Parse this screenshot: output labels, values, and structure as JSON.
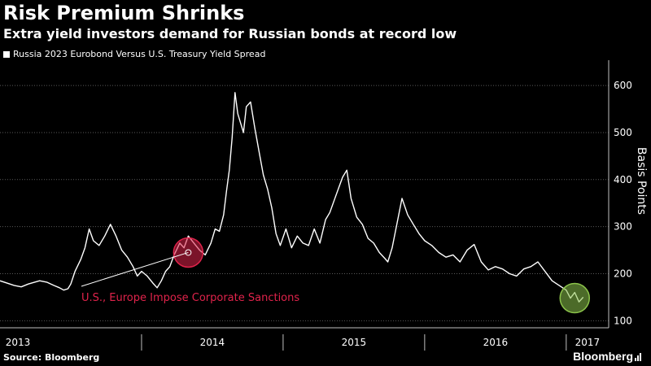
{
  "header": {
    "title": "Risk Premium Shrinks",
    "subtitle": "Extra yield investors demand for Russian bonds at record low"
  },
  "footer": {
    "source": "Source: Bloomberg",
    "logo": "Bloomberg"
  },
  "colors": {
    "background": "#000000",
    "line": "#ffffff",
    "grid": "#5a5a5a",
    "sanction_highlight": "#e0234b",
    "record_low_highlight": "#8bc34a"
  },
  "chart_data": {
    "type": "line",
    "legend": "Russia 2023 Eurobond Versus U.S. Treasury Yield Spread",
    "legend_position": "top-left",
    "ylabel": "Basis Points",
    "y_axis_side": "right",
    "ylim": [
      85,
      640
    ],
    "yticks": [
      100,
      200,
      300,
      400,
      500,
      600
    ],
    "xlim": [
      2013.0,
      2017.3
    ],
    "x_period_labels": [
      {
        "label": "2013",
        "start": 2013.0,
        "end": 2014.0
      },
      {
        "label": "2014",
        "start": 2014.0,
        "end": 2015.0
      },
      {
        "label": "2015",
        "start": 2015.0,
        "end": 2016.0
      },
      {
        "label": "2016",
        "start": 2016.0,
        "end": 2017.0
      },
      {
        "label": "2017",
        "start": 2017.0,
        "end": 2017.3
      }
    ],
    "grid": "horizontal-dotted",
    "series": [
      {
        "name": "Russia 2023 Eurobond Versus U.S. Treasury Yield Spread",
        "x": [
          2013.0,
          2013.05,
          2013.1,
          2013.15,
          2013.2,
          2013.28,
          2013.33,
          2013.38,
          2013.42,
          2013.45,
          2013.48,
          2013.5,
          2013.53,
          2013.57,
          2013.6,
          2013.63,
          2013.66,
          2013.7,
          2013.74,
          2013.78,
          2013.82,
          2013.86,
          2013.9,
          2013.94,
          2013.97,
          2014.0,
          2014.04,
          2014.08,
          2014.11,
          2014.14,
          2014.17,
          2014.2,
          2014.23,
          2014.27,
          2014.3,
          2014.33,
          2014.37,
          2014.41,
          2014.45,
          2014.49,
          2014.52,
          2014.55,
          2014.58,
          2014.6,
          2014.62,
          2014.64,
          2014.66,
          2014.68,
          2014.7,
          2014.72,
          2014.74,
          2014.77,
          2014.8,
          2014.83,
          2014.86,
          2014.89,
          2014.92,
          2014.95,
          2014.98,
          2015.02,
          2015.06,
          2015.1,
          2015.14,
          2015.18,
          2015.22,
          2015.26,
          2015.3,
          2015.33,
          2015.36,
          2015.39,
          2015.42,
          2015.45,
          2015.48,
          2015.52,
          2015.56,
          2015.6,
          2015.64,
          2015.68,
          2015.72,
          2015.74,
          2015.77,
          2015.8,
          2015.84,
          2015.88,
          2015.92,
          2015.96,
          2016.0,
          2016.05,
          2016.1,
          2016.15,
          2016.2,
          2016.25,
          2016.3,
          2016.35,
          2016.4,
          2016.45,
          2016.5,
          2016.55,
          2016.6,
          2016.65,
          2016.7,
          2016.75,
          2016.8,
          2016.85,
          2016.9,
          2016.95,
          2017.0,
          2017.03,
          2017.06,
          2017.09,
          2017.12
        ],
        "values": [
          185,
          180,
          175,
          172,
          178,
          185,
          182,
          175,
          170,
          165,
          168,
          178,
          205,
          230,
          255,
          295,
          270,
          260,
          280,
          305,
          280,
          250,
          235,
          215,
          195,
          205,
          195,
          180,
          170,
          185,
          205,
          215,
          240,
          265,
          255,
          280,
          265,
          250,
          240,
          265,
          295,
          290,
          325,
          375,
          420,
          490,
          585,
          540,
          520,
          500,
          555,
          565,
          510,
          460,
          410,
          380,
          340,
          285,
          260,
          295,
          255,
          280,
          265,
          260,
          295,
          265,
          315,
          330,
          355,
          380,
          405,
          420,
          360,
          320,
          305,
          275,
          265,
          245,
          232,
          225,
          255,
          300,
          360,
          325,
          305,
          285,
          270,
          260,
          245,
          235,
          240,
          225,
          250,
          262,
          225,
          208,
          215,
          210,
          200,
          195,
          210,
          215,
          225,
          205,
          185,
          175,
          165,
          148,
          160,
          140,
          150
        ]
      }
    ],
    "annotations": [
      {
        "text": "U.S., Europe Impose Corporate Sanctions",
        "x": 2014.33,
        "y": 245,
        "color": "#e0234b"
      },
      {
        "text": "",
        "x": 2017.06,
        "y": 148,
        "color": "#8bc34a"
      }
    ]
  }
}
